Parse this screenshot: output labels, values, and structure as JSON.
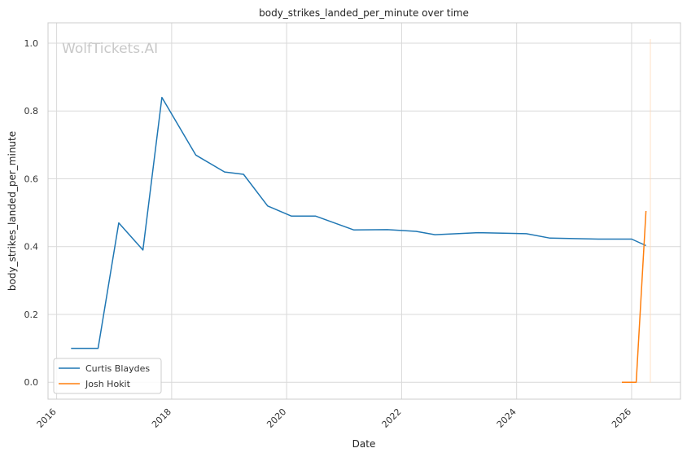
{
  "chart_data": {
    "type": "line",
    "title": "body_strikes_landed_per_minute over time",
    "xlabel": "Date",
    "ylabel": "body_strikes_landed_per_minute",
    "watermark": "WolfTickets.AI",
    "x_ticks": [
      "2016",
      "2018",
      "2020",
      "2022",
      "2024",
      "2026"
    ],
    "y_ticks": [
      "0.0",
      "0.2",
      "0.4",
      "0.6",
      "0.8",
      "1.0"
    ],
    "xlim": [
      2015.85,
      2026.85
    ],
    "ylim": [
      -0.05,
      1.06
    ],
    "grid": true,
    "legend_position": "lower-left",
    "series": [
      {
        "name": "Curtis Blaydes",
        "color": "#1f77b4",
        "x": [
          2016.25,
          2016.72,
          2017.08,
          2017.5,
          2017.83,
          2018.42,
          2018.92,
          2019.25,
          2019.67,
          2020.08,
          2020.5,
          2021.17,
          2021.75,
          2022.25,
          2022.58,
          2023.33,
          2024.17,
          2024.58,
          2025.42,
          2026.0,
          2026.25
        ],
        "y": [
          0.1,
          0.1,
          0.47,
          0.39,
          0.84,
          0.67,
          0.62,
          0.613,
          0.52,
          0.49,
          0.49,
          0.449,
          0.45,
          0.445,
          0.435,
          0.441,
          0.438,
          0.425,
          0.422,
          0.422,
          0.403
        ]
      },
      {
        "name": "Josh Hokit",
        "color": "#ff7f0e",
        "x": [
          2025.83,
          2026.08,
          2026.25
        ],
        "y": [
          0.0,
          0.0,
          0.505
        ]
      }
    ]
  }
}
